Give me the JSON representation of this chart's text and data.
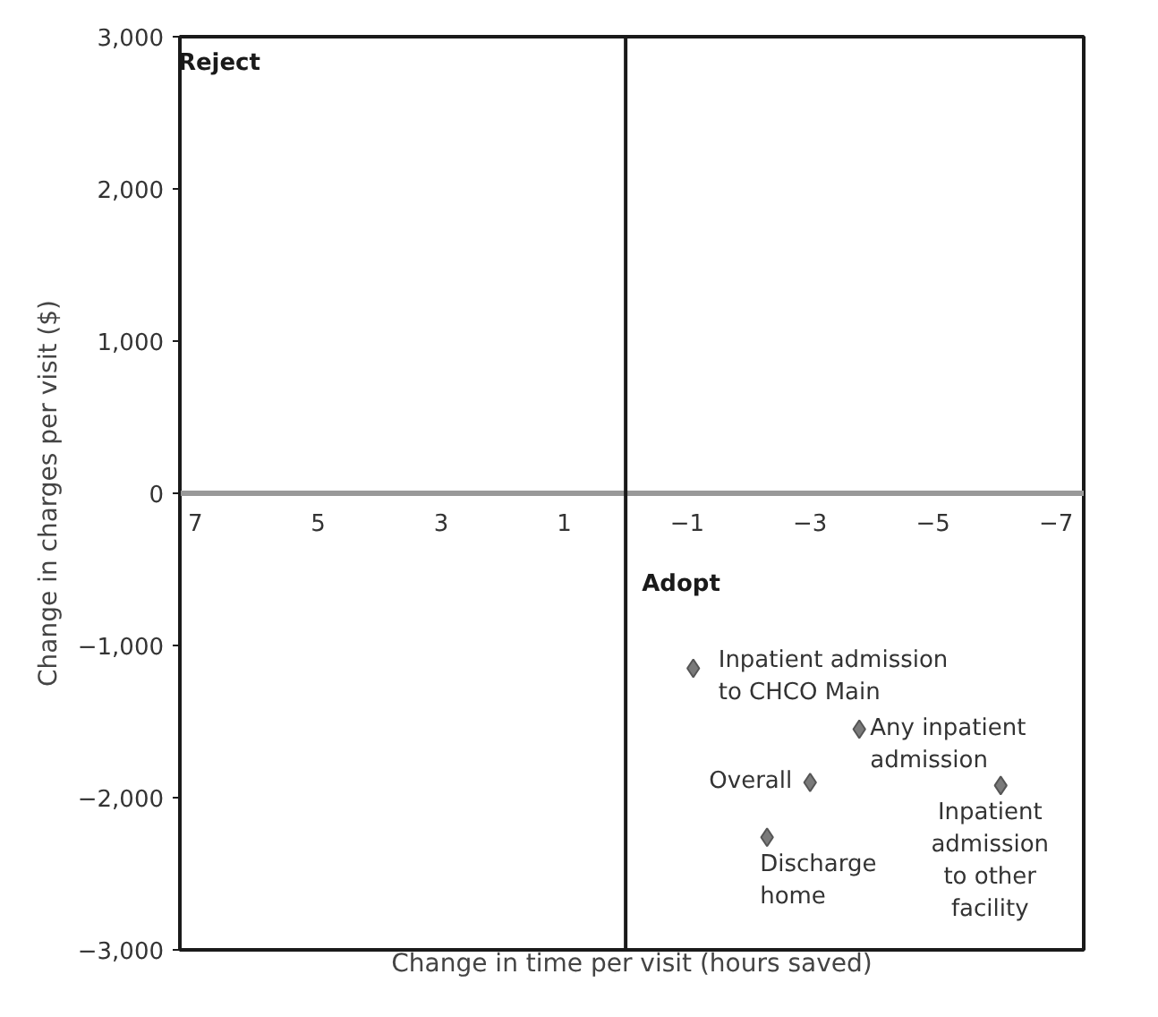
{
  "chart_data": {
    "type": "scatter",
    "xlabel": "Change in time per visit (hours saved)",
    "ylabel": "Change in charges per visit ($)",
    "xlim": [
      7.25,
      -7.45
    ],
    "ylim": [
      -3000,
      3000
    ],
    "xticks": [
      7,
      5,
      3,
      1,
      {
        "value": -1,
        "label": "−1"
      },
      {
        "value": -3,
        "label": "−3"
      },
      {
        "value": -5,
        "label": "−5"
      },
      {
        "value": -7,
        "label": "−7"
      }
    ],
    "yticks": [
      {
        "value": 3000,
        "label": "3,000"
      },
      {
        "value": 2000,
        "label": "2,000"
      },
      {
        "value": 1000,
        "label": "1,000"
      },
      0,
      {
        "value": -1000,
        "label": "−1,000"
      },
      {
        "value": -2000,
        "label": "−2,000"
      },
      {
        "value": -3000,
        "label": "−3,000"
      }
    ],
    "marker": "diamond",
    "grid": false,
    "ref_lines": [
      {
        "axis": "x",
        "value": 0,
        "color": "#1a1a1a"
      }
    ],
    "annotations": [
      "Reject",
      "Adopt"
    ],
    "series": [
      {
        "name": "Inpatient admission\nto CHCO Main",
        "color": "#7a7a7a",
        "x": [
          -1.1
        ],
        "values": [
          -1150
        ]
      },
      {
        "name": "Any inpatient\nadmission",
        "color": "#7a7a7a",
        "x": [
          -3.8
        ],
        "values": [
          -1550
        ]
      },
      {
        "name": "Overall",
        "color": "#7a7a7a",
        "x": [
          -3.0
        ],
        "values": [
          -1900
        ]
      },
      {
        "name": "Inpatient\nadmission\nto other\nfacility",
        "color": "#7a7a7a",
        "x": [
          -6.1
        ],
        "values": [
          -1920
        ]
      },
      {
        "name": "Discharge\nhome",
        "color": "#7a7a7a",
        "x": [
          -2.3
        ],
        "values": [
          -2260
        ]
      }
    ]
  }
}
